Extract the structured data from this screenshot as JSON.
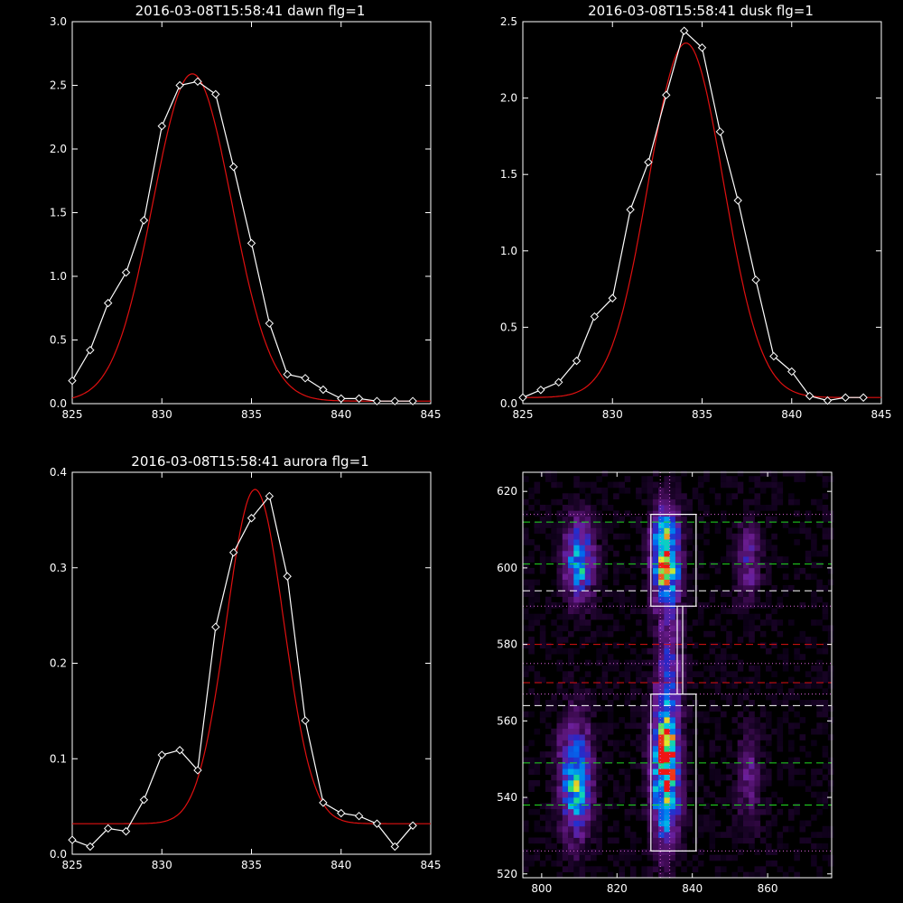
{
  "chart_data": [
    {
      "type": "line",
      "title": "2016-03-08T15:58:41 dawn flg=1",
      "xlim": [
        825,
        845
      ],
      "ylim": [
        0,
        3.0
      ],
      "xticks": [
        825,
        830,
        835,
        840,
        845
      ],
      "yticks": [
        0.0,
        0.5,
        1.0,
        1.5,
        2.0,
        2.5,
        3.0
      ],
      "ytick_labels": [
        "0.0",
        "0.5",
        "1.0",
        "1.5",
        "2.0",
        "2.5",
        "3.0"
      ],
      "series": [
        {
          "color": "#ffffff",
          "marker": "diamond",
          "x": [
            825,
            826,
            827,
            828,
            829,
            830,
            831,
            832,
            833,
            834,
            835,
            836,
            837,
            838,
            839,
            840,
            841,
            842,
            843,
            844
          ],
          "y": [
            0.18,
            0.42,
            0.79,
            1.03,
            1.44,
            2.18,
            2.5,
            2.53,
            2.43,
            1.86,
            1.26,
            0.63,
            0.23,
            0.2,
            0.11,
            0.04,
            0.04,
            0.02,
            0.02,
            0.02
          ]
        },
        {
          "color": "#e01010",
          "kind": "gaussian-fit",
          "amplitude": 2.57,
          "center": 831.7,
          "sigma": 2.2,
          "offset": 0.02
        }
      ]
    },
    {
      "type": "line",
      "title": "2016-03-08T15:58:41 dusk flg=1",
      "xlim": [
        825,
        845
      ],
      "ylim": [
        0,
        2.5
      ],
      "xticks": [
        825,
        830,
        835,
        840,
        845
      ],
      "yticks": [
        0.0,
        0.5,
        1.0,
        1.5,
        2.0,
        2.5
      ],
      "ytick_labels": [
        "0.0",
        "0.5",
        "1.0",
        "1.5",
        "2.0",
        "2.5"
      ],
      "series": [
        {
          "color": "#ffffff",
          "marker": "diamond",
          "x": [
            825,
            826,
            827,
            828,
            829,
            830,
            831,
            832,
            833,
            834,
            835,
            836,
            837,
            838,
            839,
            840,
            841,
            842,
            843,
            844
          ],
          "y": [
            0.04,
            0.09,
            0.14,
            0.28,
            0.57,
            0.69,
            1.27,
            1.58,
            2.02,
            2.44,
            2.33,
            1.78,
            1.33,
            0.81,
            0.31,
            0.21,
            0.05,
            0.02,
            0.04,
            0.04
          ]
        },
        {
          "color": "#e01010",
          "kind": "gaussian-fit",
          "amplitude": 2.32,
          "center": 834.1,
          "sigma": 2.1,
          "offset": 0.04
        }
      ]
    },
    {
      "type": "line",
      "title": "2016-03-08T15:58:41 aurora flg=1",
      "xlim": [
        825,
        845
      ],
      "ylim": [
        0,
        0.4
      ],
      "xticks": [
        825,
        830,
        835,
        840,
        845
      ],
      "yticks": [
        0.0,
        0.1,
        0.2,
        0.3,
        0.4
      ],
      "ytick_labels": [
        "0.0",
        "0.1",
        "0.2",
        "0.3",
        "0.4"
      ],
      "series": [
        {
          "color": "#ffffff",
          "marker": "diamond",
          "x": [
            825,
            826,
            827,
            828,
            829,
            830,
            831,
            832,
            833,
            834,
            835,
            836,
            837,
            838,
            839,
            840,
            841,
            842,
            843,
            844
          ],
          "y": [
            0.015,
            0.008,
            0.027,
            0.024,
            0.057,
            0.104,
            0.109,
            0.088,
            0.238,
            0.316,
            0.352,
            0.375,
            0.291,
            0.14,
            0.054,
            0.043,
            0.04,
            0.032,
            0.008,
            0.03
          ]
        },
        {
          "color": "#e01010",
          "kind": "gaussian-fit",
          "amplitude": 0.35,
          "center": 835.2,
          "sigma": 1.6,
          "offset": 0.032
        }
      ]
    },
    {
      "type": "heatmap",
      "xlim": [
        795,
        877
      ],
      "ylim": [
        519,
        625
      ],
      "xticks": [
        800,
        820,
        840,
        860
      ],
      "yticks": [
        520,
        540,
        560,
        580,
        600,
        620
      ],
      "boxes": [
        {
          "x": [
            829,
            841
          ],
          "y": [
            590,
            614
          ],
          "color": "#ffffff"
        },
        {
          "x": [
            829,
            841
          ],
          "y": [
            526,
            567
          ],
          "color": "#ffffff"
        },
        {
          "x": [
            836,
            836
          ],
          "y": [
            567,
            590
          ],
          "color": "#ffffff"
        }
      ],
      "hlines": [
        {
          "y": 612,
          "color": "#22dd22",
          "style": "dashed"
        },
        {
          "y": 601,
          "color": "#22dd22",
          "style": "dashed"
        },
        {
          "y": 549,
          "color": "#22dd22",
          "style": "dashed"
        },
        {
          "y": 538,
          "color": "#22dd22",
          "style": "dashed"
        },
        {
          "y": 594,
          "color": "#ffffff",
          "style": "dashed"
        },
        {
          "y": 564,
          "color": "#ffffff",
          "style": "dashed"
        },
        {
          "y": 580,
          "color": "#e01010",
          "style": "dashed"
        },
        {
          "y": 570,
          "color": "#e01010",
          "style": "dashed"
        },
        {
          "y": 614,
          "color": "#dd66dd",
          "style": "dotted"
        },
        {
          "y": 590,
          "color": "#dd66dd",
          "style": "dotted"
        },
        {
          "y": 575,
          "color": "#dd66dd",
          "style": "dotted"
        },
        {
          "y": 567,
          "color": "#dd66dd",
          "style": "dotted"
        },
        {
          "y": 526,
          "color": "#dd66dd",
          "style": "dotted"
        }
      ],
      "vlines": [
        {
          "x": 831.5,
          "color": "#dd66dd",
          "style": "dotted"
        },
        {
          "x": 834,
          "color": "#dd66dd",
          "style": "dotted"
        }
      ],
      "blobs": [
        {
          "cx": 810,
          "cy": 602,
          "sx": 2.6,
          "sy": 7,
          "amp": 0.55
        },
        {
          "cx": 809,
          "cy": 545,
          "sx": 2.8,
          "sy": 10,
          "amp": 0.6
        },
        {
          "cx": 833,
          "cy": 603,
          "sx": 2.4,
          "sy": 8,
          "amp": 0.9
        },
        {
          "cx": 833,
          "cy": 548,
          "sx": 2.4,
          "sy": 12,
          "amp": 0.95
        },
        {
          "cx": 834,
          "cy": 578,
          "sx": 2.2,
          "sy": 10,
          "amp": 0.25
        },
        {
          "cx": 855,
          "cy": 602,
          "sx": 2.2,
          "sy": 7,
          "amp": 0.25
        },
        {
          "cx": 855,
          "cy": 545,
          "sx": 2.2,
          "sy": 8,
          "amp": 0.2
        }
      ]
    }
  ]
}
